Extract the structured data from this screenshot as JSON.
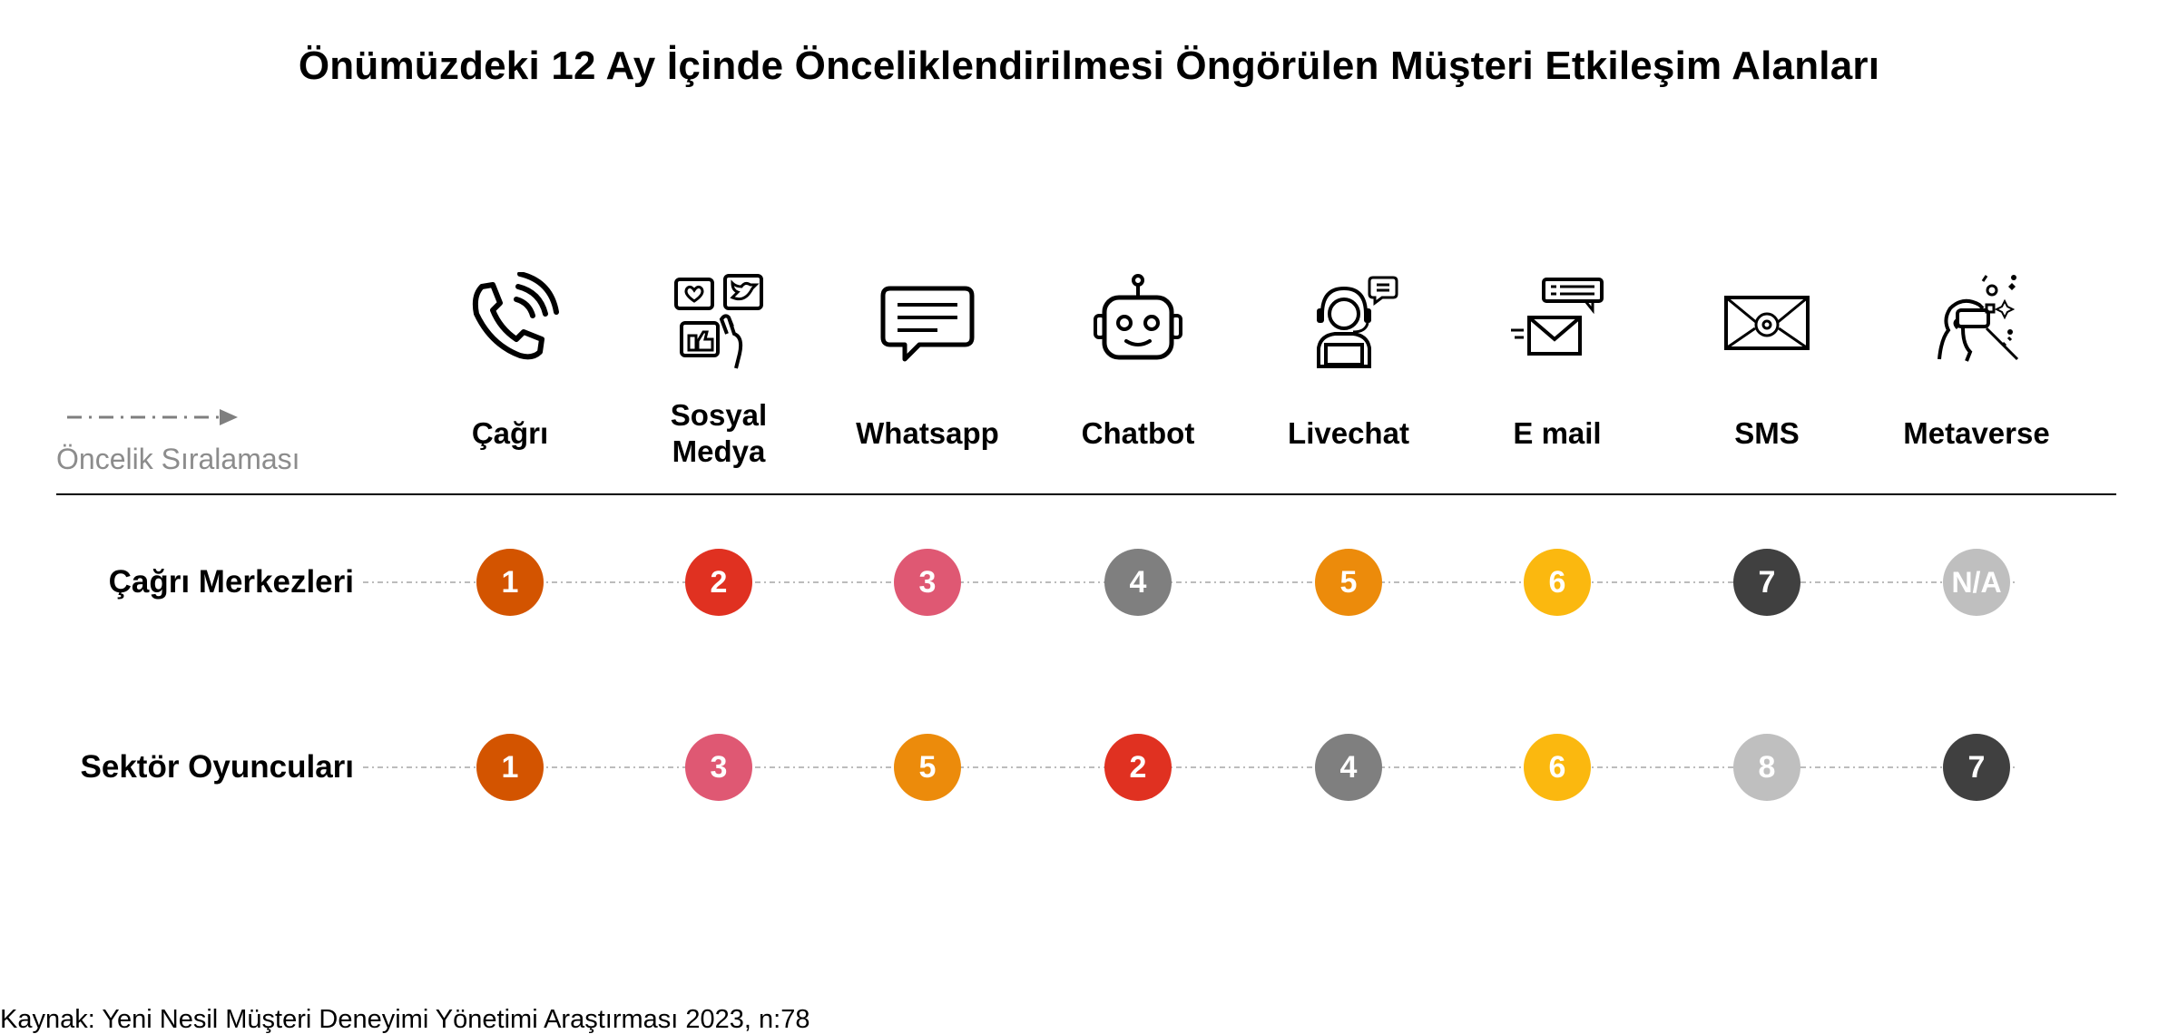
{
  "title": "Önümüzdeki 12 Ay İçinde Önceliklendirilmesi Öngörülen Müşteri Etkileşim Alanları",
  "legend": "Öncelik Sıralaması",
  "source": "Kaynak: Yeni Nesil Müşteri Deneyimi Yönetimi Araştırması 2023, n:78",
  "channels": [
    {
      "line1": "Çağrı",
      "line2": "",
      "icon": "phone-icon"
    },
    {
      "line1": "Sosyal",
      "line2": "Medya",
      "icon": "social-media-icon"
    },
    {
      "line1": "Whatsapp",
      "line2": "",
      "icon": "chat-bubble-icon"
    },
    {
      "line1": "Chatbot",
      "line2": "",
      "icon": "robot-icon"
    },
    {
      "line1": "Livechat",
      "line2": "",
      "icon": "headset-agent-icon"
    },
    {
      "line1": "E mail",
      "line2": "",
      "icon": "envelope-icon"
    },
    {
      "line1": "SMS",
      "line2": "",
      "icon": "at-envelope-icon"
    },
    {
      "line1": "Metaverse",
      "line2": "",
      "icon": "vr-headset-icon"
    }
  ],
  "rank_colors": {
    "1": "#d35400",
    "2": "#e03121",
    "3": "#df5873",
    "4": "#7f7f7f",
    "5": "#ec8b0b",
    "6": "#fbb80f",
    "7": "#404040",
    "8": "#bfbfbf",
    "N/A": "#bfbfbf"
  },
  "chart_data": {
    "type": "table",
    "columns": [
      "Çağrı",
      "Sosyal Medya",
      "Whatsapp",
      "Chatbot",
      "Livechat",
      "E mail",
      "SMS",
      "Metaverse"
    ],
    "rows": [
      {
        "label": "Çağrı Merkezleri",
        "ranks": [
          "1",
          "2",
          "3",
          "4",
          "5",
          "6",
          "7",
          "N/A"
        ]
      },
      {
        "label": "Sektör Oyuncuları",
        "ranks": [
          "1",
          "3",
          "5",
          "2",
          "4",
          "6",
          "8",
          "7"
        ]
      }
    ]
  }
}
